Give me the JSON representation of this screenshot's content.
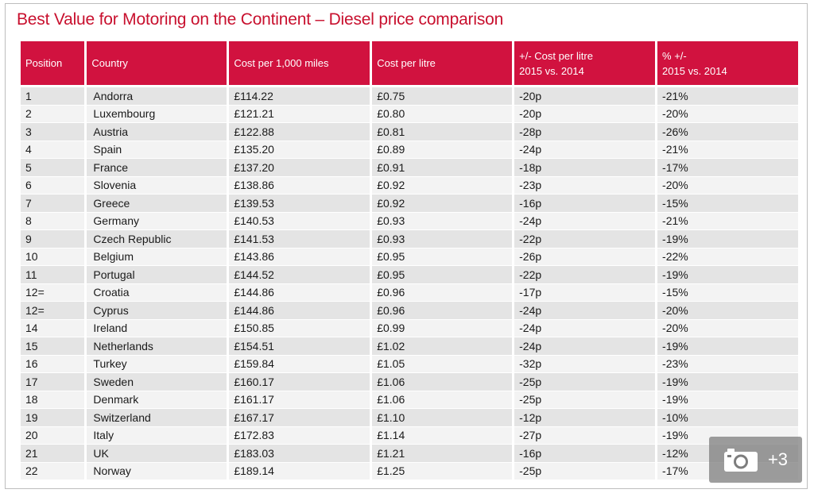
{
  "title": "Best Value for Motoring on the Continent – Diesel price comparison",
  "columns": [
    "Position",
    "Country",
    "Cost per 1,000 miles",
    "Cost per litre",
    "+/- Cost per litre 2015 vs. 2014",
    "% +/- 2015 vs. 2014"
  ],
  "header": {
    "position": "Position",
    "country": "Country",
    "cost_1000": "Cost per 1,000 miles",
    "cost_litre": "Cost per litre",
    "change_line1": "+/- Cost per litre",
    "change_line2": "2015 vs. 2014",
    "pct_line1": "% +/-",
    "pct_line2": "2015 vs. 2014"
  },
  "rows": [
    [
      "1",
      "Andorra",
      "£114.22",
      "£0.75",
      "-20p",
      "-21%"
    ],
    [
      "2",
      "Luxembourg",
      "£121.21",
      "£0.80",
      "-20p",
      "-20%"
    ],
    [
      "3",
      "Austria",
      "£122.88",
      "£0.81",
      "-28p",
      "-26%"
    ],
    [
      "4",
      "Spain",
      "£135.20",
      "£0.89",
      "-24p",
      "-21%"
    ],
    [
      "5",
      "France",
      "£137.20",
      "£0.91",
      "-18p",
      "-17%"
    ],
    [
      "6",
      "Slovenia",
      "£138.86",
      "£0.92",
      "-23p",
      "-20%"
    ],
    [
      "7",
      "Greece",
      "£139.53",
      "£0.92",
      "-16p",
      "-15%"
    ],
    [
      "8",
      "Germany",
      "£140.53",
      "£0.93",
      "-24p",
      "-21%"
    ],
    [
      "9",
      "Czech Republic",
      "£141.53",
      "£0.93",
      "-22p",
      "-19%"
    ],
    [
      "10",
      "Belgium",
      "£143.86",
      "£0.95",
      "-26p",
      "-22%"
    ],
    [
      "11",
      "Portugal",
      "£144.52",
      "£0.95",
      "-22p",
      "-19%"
    ],
    [
      "12=",
      "Croatia",
      "£144.86",
      "£0.96",
      "-17p",
      "-15%"
    ],
    [
      "12=",
      "Cyprus",
      "£144.86",
      "£0.96",
      "-24p",
      "-20%"
    ],
    [
      "14",
      "Ireland",
      "£150.85",
      "£0.99",
      "-24p",
      "-20%"
    ],
    [
      "15",
      "Netherlands",
      "£154.51",
      "£1.02",
      "-24p",
      "-19%"
    ],
    [
      "16",
      "Turkey",
      "£159.84",
      "£1.05",
      "-32p",
      "-23%"
    ],
    [
      "17",
      "Sweden",
      "£160.17",
      "£1.06",
      "-25p",
      "-19%"
    ],
    [
      "18",
      "Denmark",
      "£161.17",
      "£1.06",
      "-25p",
      "-19%"
    ],
    [
      "19",
      "Switzerland",
      "£167.17",
      "£1.10",
      "-12p",
      "-10%"
    ],
    [
      "20",
      "Italy",
      "£172.83",
      "£1.14",
      "-27p",
      "-19%"
    ],
    [
      "21",
      "UK",
      "£183.03",
      "£1.21",
      "-16p",
      "-12%"
    ],
    [
      "22",
      "Norway",
      "£189.14",
      "£1.25",
      "-25p",
      "-17%"
    ]
  ],
  "gallery_badge": {
    "icon": "camera-icon",
    "count": "+3"
  },
  "colors": {
    "accent": "#c8102e",
    "header_bg": "#d1123f",
    "row_odd": "#e4e4e4",
    "row_even": "#f3f3f3"
  }
}
